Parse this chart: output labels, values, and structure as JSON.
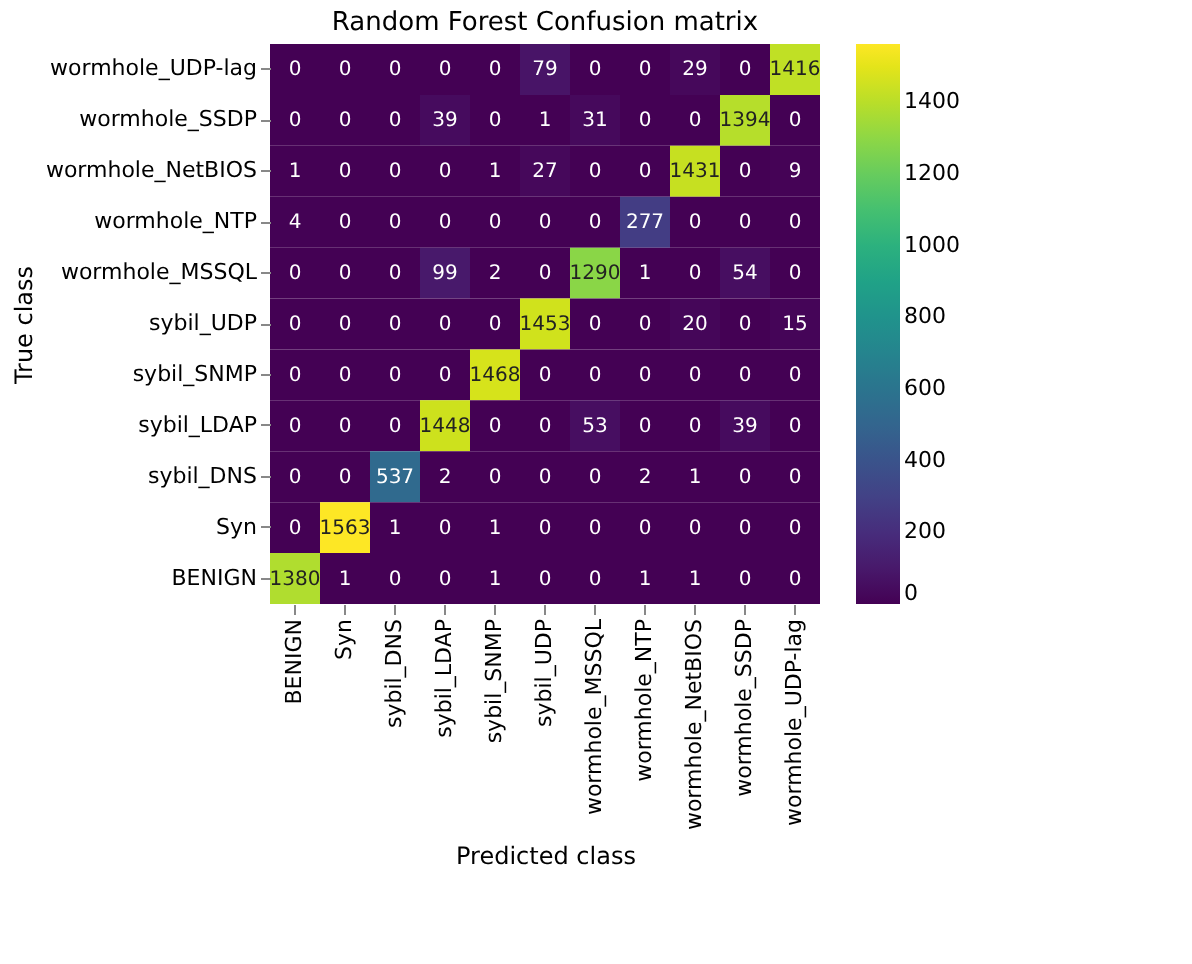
{
  "chart_data": {
    "type": "heatmap",
    "title": "Random Forest Confusion matrix",
    "xlabel": "Predicted class",
    "ylabel": "True class",
    "categories": [
      "BENIGN",
      "Syn",
      "sybil_DNS",
      "sybil_LDAP",
      "sybil_SNMP",
      "sybil_UDP",
      "wormhole_MSSQL",
      "wormhole_NTP",
      "wormhole_NetBIOS",
      "wormhole_SSDP",
      "wormhole_UDP-lag"
    ],
    "y_categories": [
      "wormhole_UDP-lag",
      "wormhole_SSDP",
      "wormhole_NetBIOS",
      "wormhole_NTP",
      "wormhole_MSSQL",
      "sybil_UDP",
      "sybil_SNMP",
      "sybil_LDAP",
      "sybil_DNS",
      "Syn",
      "BENIGN"
    ],
    "cells": [
      [
        0,
        0,
        0,
        0,
        0,
        79,
        0,
        0,
        29,
        0,
        1416
      ],
      [
        0,
        0,
        0,
        39,
        0,
        1,
        31,
        0,
        0,
        1394,
        0
      ],
      [
        1,
        0,
        0,
        0,
        1,
        27,
        0,
        0,
        1431,
        0,
        9
      ],
      [
        4,
        0,
        0,
        0,
        0,
        0,
        0,
        277,
        0,
        0,
        0
      ],
      [
        0,
        0,
        0,
        99,
        2,
        0,
        1290,
        1,
        0,
        54,
        0
      ],
      [
        0,
        0,
        0,
        0,
        0,
        1453,
        0,
        0,
        20,
        0,
        15
      ],
      [
        0,
        0,
        0,
        0,
        1468,
        0,
        0,
        0,
        0,
        0,
        0
      ],
      [
        0,
        0,
        0,
        1448,
        0,
        0,
        53,
        0,
        0,
        39,
        0
      ],
      [
        0,
        0,
        537,
        2,
        0,
        0,
        0,
        2,
        1,
        0,
        0
      ],
      [
        0,
        1563,
        1,
        0,
        1,
        0,
        0,
        0,
        0,
        0,
        0
      ],
      [
        1380,
        1,
        0,
        0,
        1,
        0,
        0,
        1,
        1,
        0,
        0
      ]
    ],
    "clim": [
      0,
      1563
    ],
    "cticks": [
      0,
      200,
      400,
      600,
      800,
      1000,
      1200,
      1400
    ],
    "data_labels": true
  }
}
